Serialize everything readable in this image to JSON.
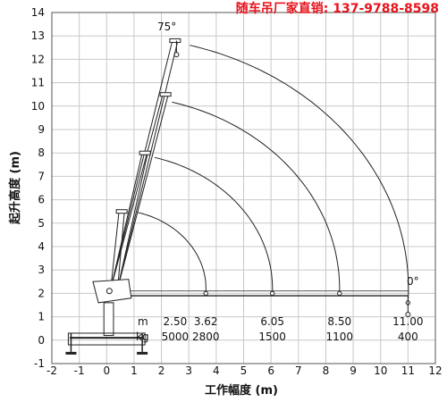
{
  "banner_text": "随车吊厂家直销: 137-9788-8598",
  "chart_data": {
    "type": "line",
    "title": "",
    "xlabel": "工作幅度 (m)",
    "ylabel": "起升高度 (m)",
    "xlim": [
      -2,
      12
    ],
    "ylim": [
      -1,
      14
    ],
    "x_ticks": [
      "-2",
      "-1",
      "0",
      "1",
      "2",
      "3",
      "4",
      "5",
      "6",
      "7",
      "8",
      "9",
      "10",
      "11",
      "12"
    ],
    "y_ticks": [
      "-1",
      "0",
      "1",
      "2",
      "3",
      "4",
      "5",
      "6",
      "7",
      "8",
      "9",
      "10",
      "11",
      "12",
      "13",
      "14"
    ],
    "grid": true,
    "pivot": [
      0.25,
      2.2
    ],
    "boom_positions": [
      {
        "x": 2.5,
        "y": 12.8
      },
      {
        "x": 2.15,
        "y": 10.5
      },
      {
        "x": 1.4,
        "y": 8.0
      },
      {
        "x": 0.55,
        "y": 5.5
      }
    ],
    "working_range_curves": [
      {
        "outreach": 11.0,
        "min_height": 1.6
      },
      {
        "outreach": 8.5,
        "min_height": 2.0
      },
      {
        "outreach": 6.05,
        "min_height": 2.0
      },
      {
        "outreach": 3.62,
        "min_height": 2.0
      }
    ],
    "angle_labels": {
      "max": "75°",
      "min": "0°"
    },
    "load_table": {
      "radius_unit": "m",
      "load_unit": "kg",
      "radius": [
        "2.50",
        "3.62",
        "6.05",
        "8.50",
        "11.00"
      ],
      "load": [
        "5000",
        "2800",
        "1500",
        "1100",
        "400"
      ]
    }
  },
  "colors": {
    "line": "#222222",
    "grid": "#c8c8c8",
    "banner": "#e8121c"
  }
}
